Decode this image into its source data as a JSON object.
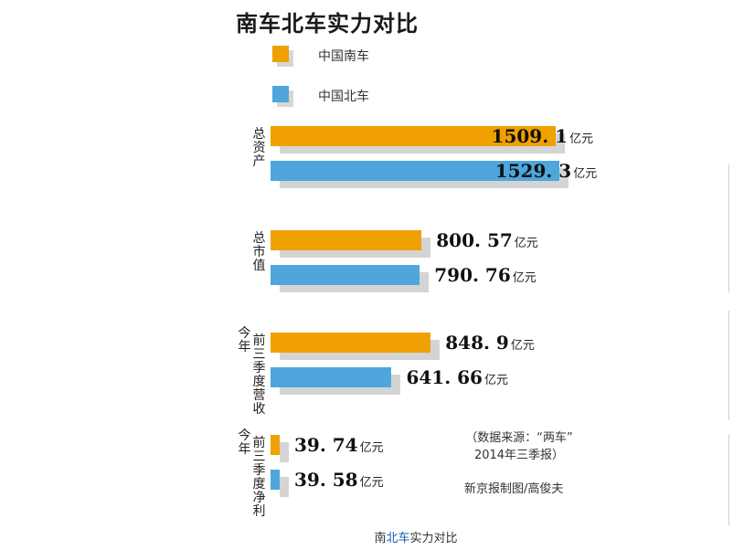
{
  "chart_data": {
    "type": "bar",
    "orientation": "horizontal",
    "title": "南车北车实力对比",
    "unit": "亿元",
    "series": [
      {
        "name": "中国南车",
        "color": "#f0a000"
      },
      {
        "name": "中国北车",
        "color": "#4ea6dc"
      }
    ],
    "groups": [
      {
        "label": "总资产",
        "label_lines": [
          "",
          "总资产"
        ],
        "values": [
          1509.1,
          1529.3
        ],
        "display": [
          "1509. 1",
          "1529. 3"
        ]
      },
      {
        "label": "总市值",
        "label_lines": [
          "",
          "总市值"
        ],
        "values": [
          800.57,
          790.76
        ],
        "display": [
          "800. 57",
          "790. 76"
        ]
      },
      {
        "label": "今年前三季度营收",
        "label_lines": [
          "今年",
          "前三季度营收"
        ],
        "values": [
          848.9,
          641.66
        ],
        "display": [
          "848. 9",
          "641. 66"
        ]
      },
      {
        "label": "今年前三季度净利",
        "label_lines": [
          "今年",
          "前三季度净利"
        ],
        "values": [
          39.74,
          39.58
        ],
        "display": [
          "39. 74",
          "39. 58"
        ]
      }
    ]
  },
  "legend": [
    "中国南车",
    "中国北车"
  ],
  "source_note": [
    "（数据来源：“两车”",
    "2014年三季报）"
  ],
  "credit": "新京报制图/高俊夫",
  "caption": {
    "part1": "南",
    "link": "北车",
    "part2": "实力对比"
  }
}
